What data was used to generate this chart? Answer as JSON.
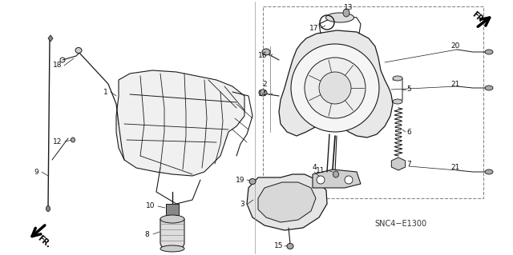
{
  "bg_color": "#ffffff",
  "line_color": "#1a1a1a",
  "label_color": "#111111",
  "diagram_code": "SNC4−E1300",
  "font_size": 6.5,
  "fig_w": 6.4,
  "fig_h": 3.19,
  "dpi": 100
}
